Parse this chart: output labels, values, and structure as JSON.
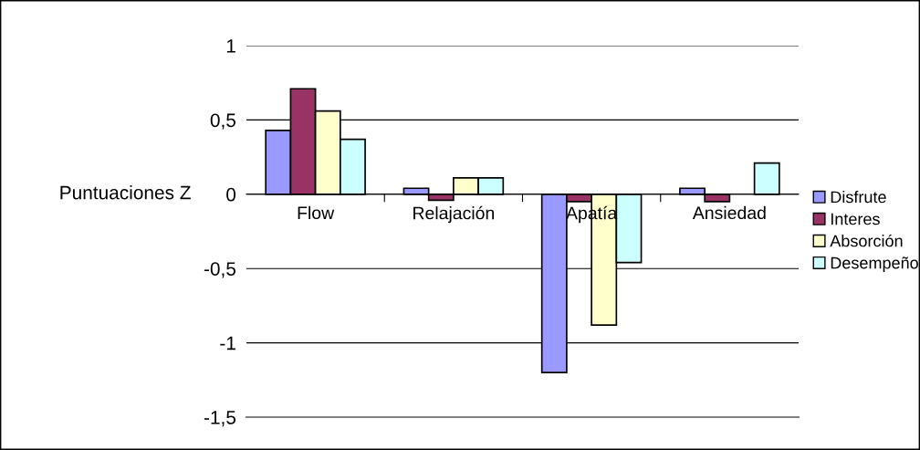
{
  "chart_data": {
    "type": "bar",
    "ylabel": "Puntuaciones Z",
    "categories": [
      "Flow",
      "Relajación",
      "Apatía",
      "Ansiedad"
    ],
    "series": [
      {
        "name": "Disfrute",
        "color": "#9999ff",
        "values": [
          0.43,
          0.04,
          -1.2,
          0.04
        ]
      },
      {
        "name": "Interes",
        "color": "#993366",
        "values": [
          0.71,
          -0.04,
          -0.05,
          -0.05
        ]
      },
      {
        "name": "Absorción",
        "color": "#ffffcc",
        "values": [
          0.56,
          0.11,
          -0.88,
          null
        ]
      },
      {
        "name": "Desempeño",
        "color": "#ccffff",
        "values": [
          0.37,
          0.11,
          -0.46,
          0.21
        ]
      }
    ],
    "ylim": [
      -1.5,
      1
    ],
    "yticks": [
      {
        "value": -1.5,
        "label": "-1,5"
      },
      {
        "value": -1,
        "label": "-1"
      },
      {
        "value": -0.5,
        "label": "-0,5"
      },
      0,
      {
        "value": 0.5,
        "label": "0,5"
      },
      1
    ],
    "grid": "y",
    "legend": "right"
  }
}
